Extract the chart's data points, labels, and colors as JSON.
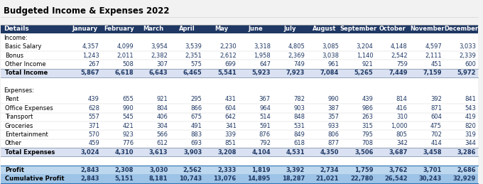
{
  "title": "Budgeted Income & Expenses 2022",
  "columns": [
    "Details",
    "January",
    "February",
    "March",
    "April",
    "May",
    "June",
    "July",
    "August",
    "September",
    "October",
    "November",
    "December"
  ],
  "header_bg": "#1F3864",
  "header_fg": "#FFFFFF",
  "income_label": "Income:",
  "expense_label": "Expenses:",
  "income_rows": [
    {
      "label": "Basic Salary",
      "values": [
        4357,
        4099,
        3954,
        3539,
        2230,
        3318,
        4805,
        3085,
        3204,
        4148,
        4597,
        3033
      ]
    },
    {
      "label": "Bonus",
      "values": [
        1243,
        2011,
        2382,
        2351,
        2612,
        1958,
        2369,
        3038,
        1140,
        2542,
        2111,
        2339
      ]
    },
    {
      "label": "Other Income",
      "values": [
        267,
        508,
        307,
        575,
        699,
        647,
        749,
        961,
        921,
        759,
        451,
        600
      ]
    }
  ],
  "total_income": [
    5867,
    6618,
    6643,
    6465,
    5541,
    5923,
    7923,
    7084,
    5265,
    7449,
    7159,
    5972
  ],
  "expense_rows": [
    {
      "label": "Rent",
      "values": [
        439,
        655,
        921,
        295,
        431,
        367,
        782,
        990,
        439,
        814,
        392,
        841
      ]
    },
    {
      "label": "Office Expenses",
      "values": [
        628,
        990,
        804,
        866,
        604,
        964,
        903,
        387,
        986,
        416,
        871,
        543
      ]
    },
    {
      "label": "Transport",
      "values": [
        557,
        545,
        406,
        675,
        642,
        514,
        848,
        357,
        263,
        310,
        604,
        419
      ]
    },
    {
      "label": "Groceries",
      "values": [
        371,
        421,
        304,
        491,
        341,
        591,
        531,
        933,
        315,
        1000,
        475,
        820
      ]
    },
    {
      "label": "Entertainment",
      "values": [
        570,
        923,
        566,
        883,
        339,
        876,
        849,
        806,
        795,
        805,
        702,
        319
      ]
    },
    {
      "label": "Other",
      "values": [
        459,
        776,
        612,
        693,
        851,
        792,
        618,
        877,
        708,
        342,
        414,
        344
      ]
    }
  ],
  "total_expenses": [
    3024,
    4310,
    3613,
    3903,
    3208,
    4104,
    4531,
    4350,
    3506,
    3687,
    3458,
    3286
  ],
  "profit": [
    2843,
    2308,
    3030,
    2562,
    2333,
    1819,
    3392,
    2734,
    1759,
    3762,
    3701,
    2686
  ],
  "cumulative_profit": [
    2843,
    5151,
    8181,
    10743,
    13076,
    14895,
    18287,
    21021,
    22780,
    26542,
    30243,
    32929
  ],
  "total_row_bg": "#D9E1F2",
  "profit_row_bg": "#BDD7EE",
  "cumulative_row_bg": "#9DC3E6",
  "data_color": "#1F3864",
  "label_color": "#000000",
  "section_label_color": "#000000",
  "bg_color": "#FFFFFF",
  "outer_bg": "#F2F2F2"
}
